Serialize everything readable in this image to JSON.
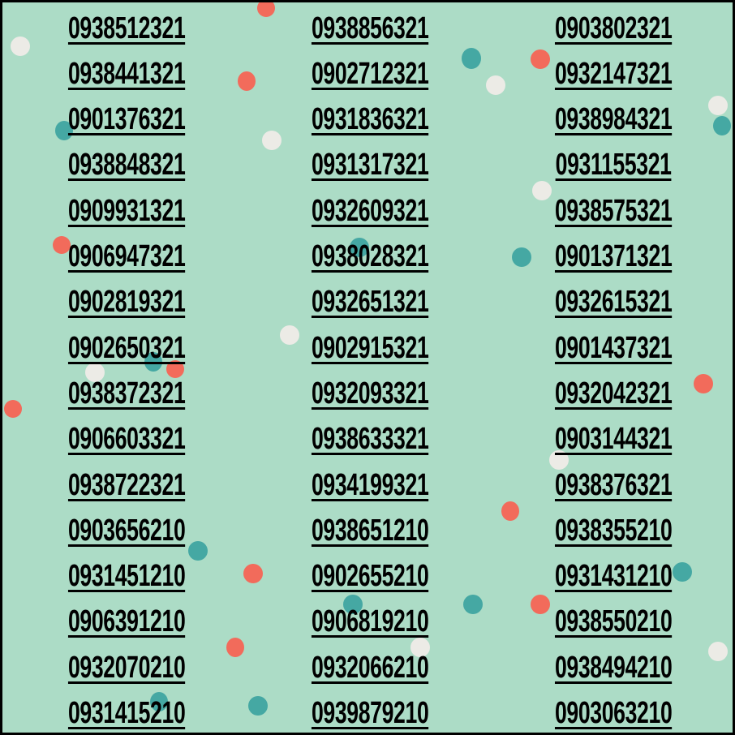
{
  "colors": {
    "background": "#acdcc6",
    "text": "#000000",
    "accent_teal": "#45a8a3",
    "accent_coral": "#f26b5b",
    "accent_white": "#ecebe6"
  },
  "columns": [
    [
      "0938512321",
      "0938441321",
      "0901376321",
      "0938848321",
      "0909931321",
      "0906947321",
      "0902819321",
      "0902650321",
      "0938372321",
      "0906603321",
      "0938722321",
      "0903656210",
      "0931451210",
      "0906391210",
      "0932070210",
      "0931415210"
    ],
    [
      "0938856321",
      "0902712321",
      "0931836321",
      "0931317321",
      "0932609321",
      "0938028321",
      "0932651321",
      "0902915321",
      "0932093321",
      "0938633321",
      "0934199321",
      "0938651210",
      "0902655210",
      "0906819210",
      "0932066210",
      "0939879210"
    ],
    [
      "0903802321",
      "0932147321",
      "0938984321",
      "0931155321",
      "0938575321",
      "0901371321",
      "0932615321",
      "0901437321",
      "0932042321",
      "0903144321",
      "0938376321",
      "0938355210",
      "0931431210",
      "0938550210",
      "0938494210",
      "0903063210"
    ]
  ]
}
